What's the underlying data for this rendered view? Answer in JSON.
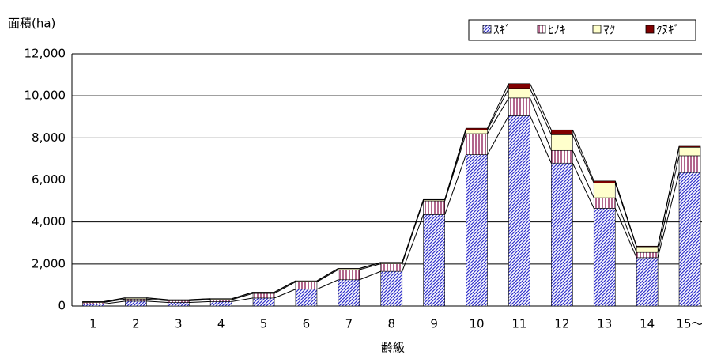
{
  "chart_data": {
    "type": "stacked-bar",
    "y_label": "面積(ha)",
    "x_label": "齢級",
    "categories": [
      "1",
      "2",
      "3",
      "4",
      "5",
      "6",
      "7",
      "8",
      "9",
      "10",
      "11",
      "12",
      "13",
      "14",
      "15～"
    ],
    "series": [
      {
        "name": "ｽｷﾞ",
        "color": "#3333cc",
        "pattern": "diagonal",
        "values": [
          100,
          230,
          170,
          210,
          380,
          800,
          1250,
          1650,
          4350,
          7200,
          9050,
          6800,
          4650,
          2300,
          6350
        ]
      },
      {
        "name": "ﾋﾉｷ",
        "color": "#993366",
        "pattern": "vertical",
        "values": [
          70,
          100,
          80,
          90,
          220,
          350,
          480,
          360,
          650,
          1000,
          850,
          600,
          500,
          250,
          800
        ]
      },
      {
        "name": "ﾏﾂ",
        "color": "#ffffcc",
        "values": [
          30,
          50,
          40,
          40,
          50,
          40,
          50,
          60,
          50,
          180,
          450,
          750,
          700,
          270,
          400
        ]
      },
      {
        "name": "ｸﾇｷﾞ",
        "color": "#800000",
        "values": [
          10,
          10,
          10,
          10,
          10,
          10,
          10,
          10,
          20,
          80,
          230,
          230,
          100,
          30,
          50
        ]
      }
    ],
    "ylim": [
      0,
      12000
    ],
    "yticks": [
      0,
      {
        "value": 2000,
        "label": "2,000"
      },
      {
        "value": 4000,
        "label": "4,000"
      },
      {
        "value": 6000,
        "label": "6,000"
      },
      {
        "value": 8000,
        "label": "8,000"
      },
      {
        "value": 10000,
        "label": "10,000"
      },
      {
        "value": 12000,
        "label": "12,000"
      }
    ],
    "grid": true,
    "legend": "top-right",
    "series_lines": true
  }
}
